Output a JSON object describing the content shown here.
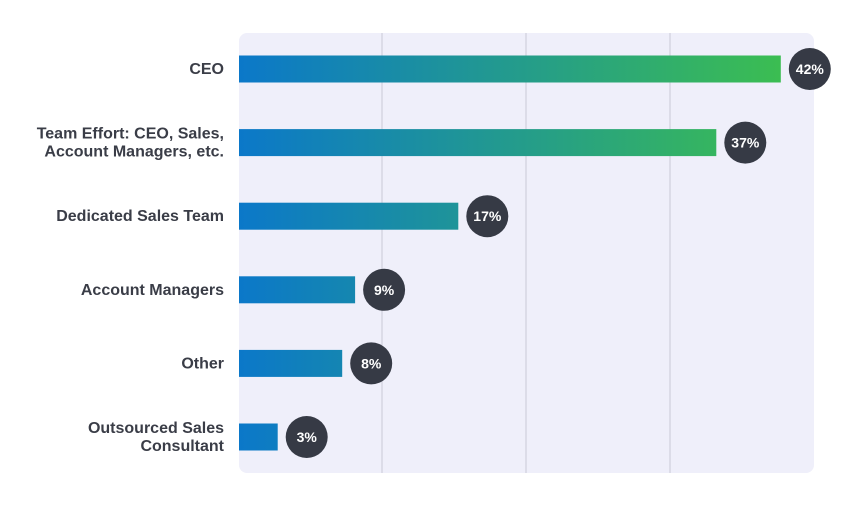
{
  "chart_data": {
    "type": "bar",
    "orientation": "horizontal",
    "title": "",
    "xlabel": "",
    "ylabel": "",
    "categories": [
      [
        "CEO"
      ],
      [
        "Team Effort: CEO, Sales,",
        "Account Managers, etc."
      ],
      [
        "Dedicated Sales Team"
      ],
      [
        "Account Managers"
      ],
      [
        "Other"
      ],
      [
        "Outsourced Sales",
        "Consultant"
      ]
    ],
    "values": [
      42,
      37,
      17,
      9,
      8,
      3
    ],
    "value_labels": [
      "42%",
      "37%",
      "17%",
      "9%",
      "8%",
      "3%"
    ],
    "unit": "%",
    "xlim": [
      0,
      45
    ],
    "grid": "vertical lines",
    "legend": "none"
  },
  "colors": {
    "panel_background": "#efeffa",
    "gridline": "#c9c9d6",
    "bar_gradient_start": "#0b78c9",
    "bar_gradient_end": "#3bbd52",
    "badge_fill": "#363a45",
    "badge_text": "#ffffff",
    "category_text": "#3a3d47"
  }
}
